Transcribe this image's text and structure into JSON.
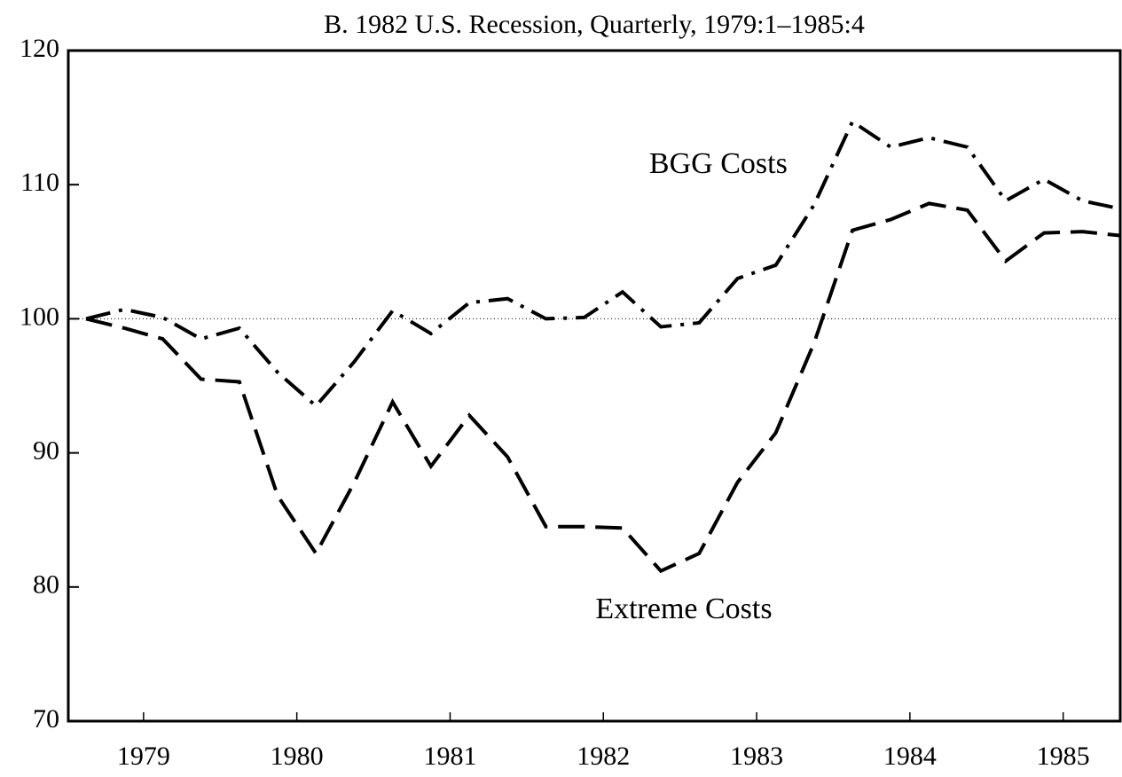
{
  "chart_data": {
    "type": "line",
    "title": "B. 1982 U.S. Recession, Quarterly, 1979:1–1985:4",
    "x": [
      1979,
      1979.25,
      1979.5,
      1979.75,
      1980,
      1980.25,
      1980.5,
      1980.75,
      1981,
      1981.25,
      1981.5,
      1981.75,
      1982,
      1982.25,
      1982.5,
      1982.75,
      1983,
      1983.25,
      1983.5,
      1983.75,
      1984,
      1984.25,
      1984.5,
      1984.75,
      1985,
      1985.25,
      1985.5,
      1985.75
    ],
    "series": [
      {
        "name": "BGG Costs",
        "color": "#000000",
        "style": "dashdot",
        "values": [
          100,
          100.7,
          100.1,
          98.5,
          99.3,
          96,
          93.5,
          96.8,
          100.6,
          98.9,
          101.2,
          101.5,
          100,
          100.1,
          102,
          99.4,
          99.7,
          103,
          104,
          108.5,
          114.7,
          112.8,
          113.5,
          112.8,
          108.8,
          110.4,
          108.8,
          108.2
        ]
      },
      {
        "name": "Extreme Costs",
        "color": "#000000",
        "style": "dashed",
        "values": [
          100,
          99.3,
          98.5,
          95.5,
          95.3,
          86.8,
          82.5,
          87.8,
          93.8,
          89,
          92.8,
          89.7,
          84.5,
          84.5,
          84.4,
          81.2,
          82.5,
          87.8,
          91.5,
          98.2,
          106.6,
          107.4,
          108.6,
          108.1,
          104.3,
          106.4,
          106.5,
          106.2
        ]
      }
    ],
    "annotations": [
      {
        "text": "BGG Costs",
        "x": 1983.125,
        "y": 111.4
      },
      {
        "text": "Extreme Costs",
        "x": 1982.9,
        "y": 78.2
      }
    ],
    "reference_line": 100,
    "xlim": [
      1978.884,
      1985.753
    ],
    "xticks": [
      {
        "value": 1979.375,
        "label": "1979"
      },
      {
        "value": 1980.375,
        "label": "1980"
      },
      {
        "value": 1981.375,
        "label": "1981"
      },
      {
        "value": 1982.375,
        "label": "1982"
      },
      {
        "value": 1983.375,
        "label": "1983"
      },
      {
        "value": 1984.375,
        "label": "1984"
      },
      {
        "value": 1985.375,
        "label": "1985"
      }
    ],
    "ylim": [
      70,
      120
    ],
    "yticks": [
      70,
      80,
      90,
      100,
      110,
      120
    ]
  }
}
